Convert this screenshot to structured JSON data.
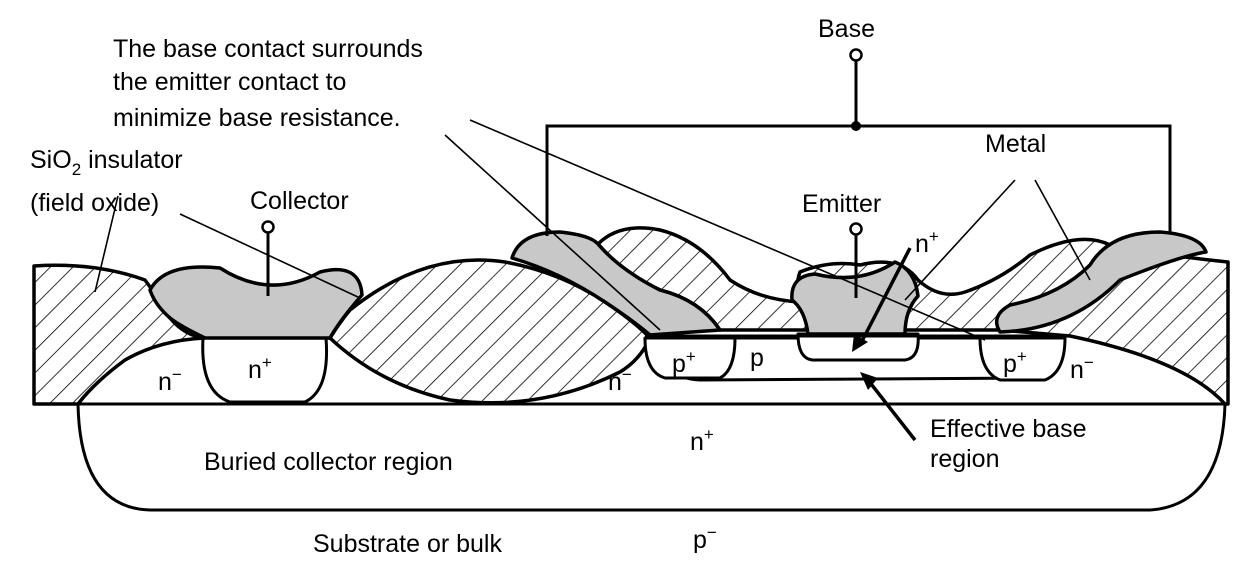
{
  "labels": {
    "base": "Base",
    "note_line1": "The base contact surrounds",
    "note_line2": "the emitter contact to",
    "note_line3": "minimize base resistance.",
    "metal": "Metal",
    "sio2_pre": "SiO",
    "sio2_sub": "2",
    "sio2_post": " insulator",
    "field_oxide": "(field oxide)",
    "collector": "Collector",
    "emitter": "Emitter",
    "n_plus_top": "n",
    "n_plus_top_sup": "+",
    "n_plus_collector": "n",
    "n_plus_collector_sup": "+",
    "n_minus_left": "n",
    "n_minus_left_sup": "−",
    "n_minus_mid": "n",
    "n_minus_mid_sup": "−",
    "n_minus_right": "n",
    "n_minus_right_sup": "−",
    "p_plus_left": "p",
    "p_plus_left_sup": "+",
    "p_plus_right": "p",
    "p_plus_right_sup": "+",
    "p_region": "p",
    "n_plus_buried": "n",
    "n_plus_buried_sup": "+",
    "effective_base_line1": "Effective base",
    "effective_base_line2": "region",
    "buried_collector": "Buried collector region",
    "substrate": "Substrate or bulk",
    "p_minus": "p",
    "p_minus_sup": "−"
  },
  "colors": {
    "metal": "#c8c8c8",
    "oxide_hatch": "#000000"
  }
}
